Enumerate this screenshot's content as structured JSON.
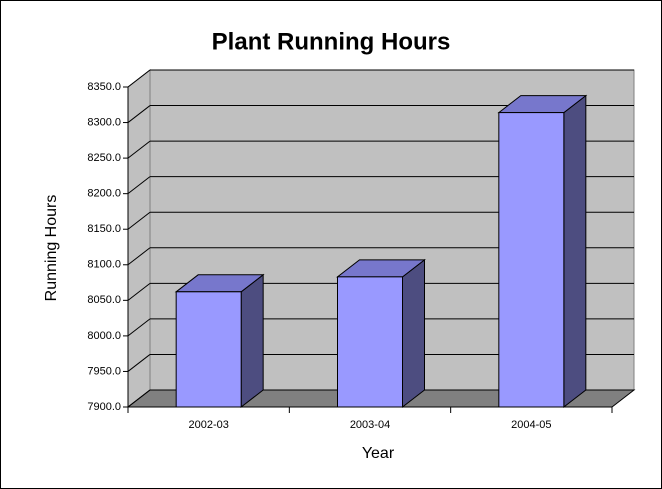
{
  "chart_data": {
    "type": "bar3d",
    "title": "Plant Running Hours",
    "x_label": "Year",
    "y_label": "Running Hours",
    "categories": [
      "2002-03",
      "2003-04",
      "2004-05"
    ],
    "values": [
      8062,
      8083,
      8314
    ],
    "color": "#9999ff",
    "ylim": [
      7900,
      8350
    ],
    "yticks": [
      {
        "value": 7900,
        "label": "7900.0"
      },
      {
        "value": 7950,
        "label": "7950.0"
      },
      {
        "value": 8000,
        "label": "8000.0"
      },
      {
        "value": 8050,
        "label": "8050.0"
      },
      {
        "value": 8100,
        "label": "8100.0"
      },
      {
        "value": 8150,
        "label": "8150.0"
      },
      {
        "value": 8200,
        "label": "8200.0"
      },
      {
        "value": 8250,
        "label": "8250.0"
      },
      {
        "value": 8300,
        "label": "8300.0"
      },
      {
        "value": 8350,
        "label": "8350.0"
      }
    ],
    "grid": true
  }
}
